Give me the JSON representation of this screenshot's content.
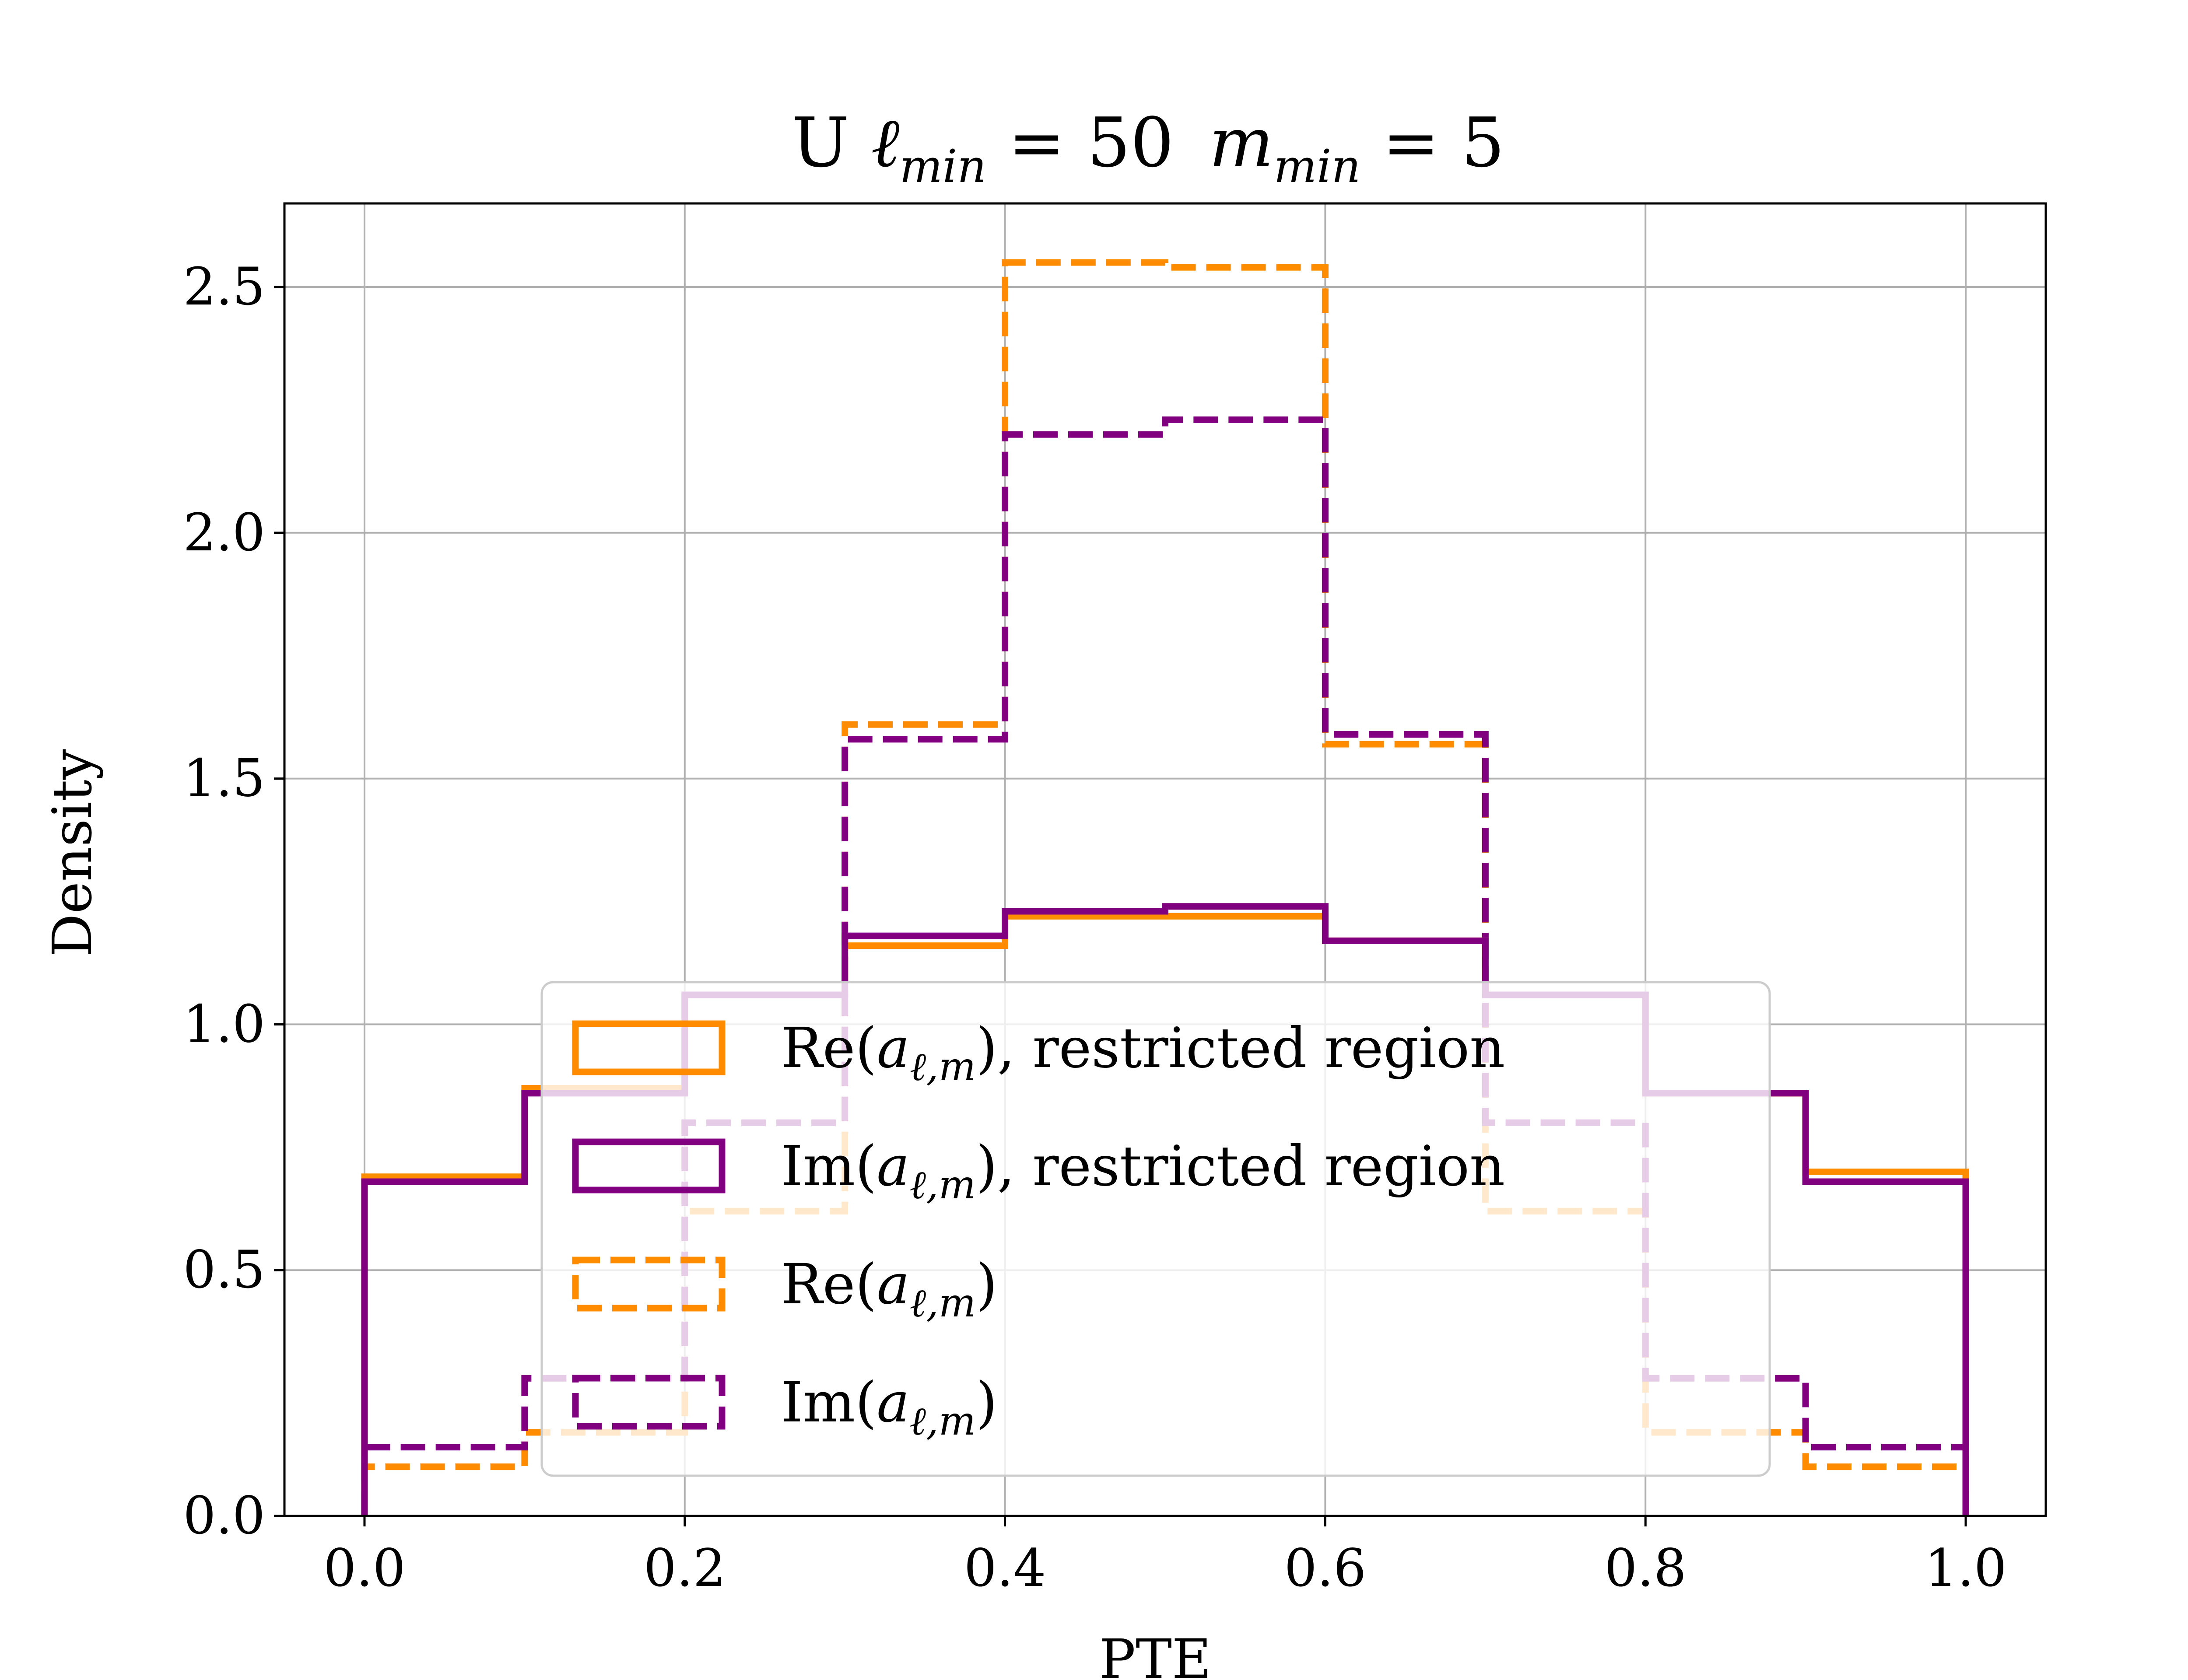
{
  "chart_data": {
    "type": "histogram",
    "title": {
      "prefix": "U ",
      "sym1": "ℓ",
      "sub1": "min",
      "eq1": " = 50",
      "sym2": "m",
      "sub2": "min",
      "eq2": " = 5"
    },
    "xlabel": "PTE",
    "ylabel": "Density",
    "xlim": [
      -0.05,
      1.05
    ],
    "ylim": [
      0,
      2.67
    ],
    "xticks": [
      0.0,
      0.2,
      0.4,
      0.6,
      0.8,
      1.0
    ],
    "xtick_labels": [
      "0.0",
      "0.2",
      "0.4",
      "0.6",
      "0.8",
      "1.0"
    ],
    "yticks": [
      0.0,
      0.5,
      1.0,
      1.5,
      2.0,
      2.5
    ],
    "ytick_labels": [
      "0.0",
      "0.5",
      "1.0",
      "1.5",
      "2.0",
      "2.5"
    ],
    "grid": true,
    "legend_position": "lower-center",
    "bin_edges": [
      0.0,
      0.1,
      0.2,
      0.3,
      0.4,
      0.5,
      0.6,
      0.7,
      0.8,
      0.9,
      1.0
    ],
    "series": [
      {
        "name": {
          "prefix": "Re(",
          "sym": "a",
          "sub": "ℓ,m",
          "suffix": "), restricted region"
        },
        "color": "#ff8c00",
        "style": "solid",
        "values": [
          0.69,
          0.87,
          1.06,
          1.16,
          1.22,
          1.22,
          1.17,
          1.06,
          0.86,
          0.7
        ]
      },
      {
        "name": {
          "prefix": "Im(",
          "sym": "a",
          "sub": "ℓ,m",
          "suffix": "), restricted region"
        },
        "color": "#800080",
        "style": "solid",
        "values": [
          0.68,
          0.86,
          1.06,
          1.18,
          1.23,
          1.24,
          1.17,
          1.06,
          0.86,
          0.68
        ]
      },
      {
        "name": {
          "prefix": "Re(",
          "sym": "a",
          "sub": "ℓ,m",
          "suffix": ")"
        },
        "color": "#ff8c00",
        "style": "dashed",
        "values": [
          0.1,
          0.17,
          0.62,
          1.61,
          2.55,
          2.54,
          1.57,
          0.62,
          0.17,
          0.1
        ]
      },
      {
        "name": {
          "prefix": "Im(",
          "sym": "a",
          "sub": "ℓ,m",
          "suffix": ")"
        },
        "color": "#800080",
        "style": "dashed",
        "values": [
          0.14,
          0.28,
          0.8,
          1.58,
          2.2,
          2.23,
          1.59,
          0.8,
          0.28,
          0.14
        ]
      }
    ]
  }
}
